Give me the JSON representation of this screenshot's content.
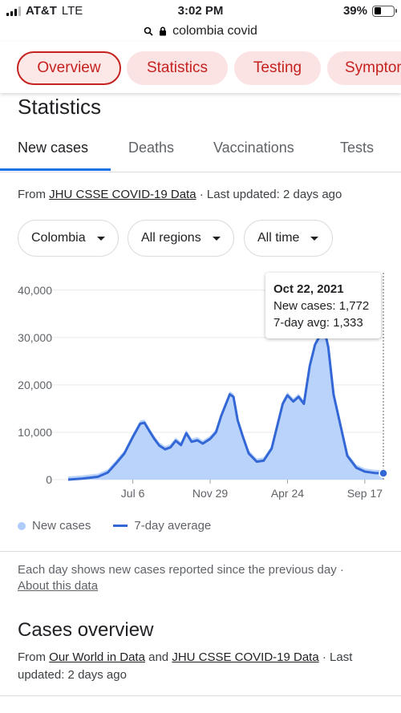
{
  "status_bar": {
    "carrier": "AT&T",
    "network": "LTE",
    "time": "3:02 PM",
    "battery": "39%",
    "battery_level": 0.39
  },
  "url": "colombia covid",
  "nav_chips": [
    "Overview",
    "Statistics",
    "Testing",
    "Symptoms"
  ],
  "section_title": "Statistics",
  "tabs": [
    "New cases",
    "Deaths",
    "Vaccinations",
    "Tests"
  ],
  "source_line": {
    "prefix": "From ",
    "link": "JHU CSSE COVID-19 Data",
    "suffix": " · Last updated: 2 days ago"
  },
  "filters": [
    "Colombia",
    "All regions",
    "All time"
  ],
  "tooltip": {
    "date": "Oct 22, 2021",
    "new_cases": "New cases: 1,772",
    "avg": "7-day avg: 1,333"
  },
  "legend": {
    "bars": "New cases",
    "line": "7-day average"
  },
  "note": {
    "text": "Each day shows new cases reported since the previous day",
    "sep": " · ",
    "link": "About this data"
  },
  "overview": {
    "title": "Cases overview",
    "prefix": "From ",
    "link1": "Our World in Data",
    "mid": " and ",
    "link2": "JHU CSSE COVID-19 Data",
    "suffix": " · Last updated: 2 days ago"
  },
  "colors": {
    "accent_red": "#c5221f",
    "chip_bg": "#fbe3e4",
    "tab_blue": "#1a73e8",
    "line_blue": "#3367d6",
    "bar_blue": "#aecbfa"
  },
  "chart_data": {
    "type": "area",
    "title": "",
    "y_ticks": [
      "0",
      "10,000",
      "20,000",
      "30,000",
      "40,000"
    ],
    "x_ticks": [
      "Jul 6",
      "Nov 29",
      "Apr 24",
      "Sep 17"
    ],
    "ylim": [
      0,
      42000
    ],
    "grid": true,
    "series": [
      {
        "name": "7-day average",
        "x": [
          "2020-03-06",
          "2020-04-01",
          "2020-05-01",
          "2020-05-20",
          "2020-06-05",
          "2020-06-20",
          "2020-07-06",
          "2020-07-20",
          "2020-07-28",
          "2020-08-05",
          "2020-08-15",
          "2020-08-25",
          "2020-09-05",
          "2020-09-15",
          "2020-09-25",
          "2020-10-05",
          "2020-10-15",
          "2020-10-25",
          "2020-11-05",
          "2020-11-15",
          "2020-11-29",
          "2020-12-10",
          "2020-12-20",
          "2021-01-05",
          "2021-01-12",
          "2021-01-20",
          "2021-01-30",
          "2021-02-10",
          "2021-02-25",
          "2021-03-10",
          "2021-03-25",
          "2021-04-05",
          "2021-04-15",
          "2021-04-24",
          "2021-05-05",
          "2021-05-15",
          "2021-05-25",
          "2021-06-05",
          "2021-06-15",
          "2021-06-25",
          "2021-07-02",
          "2021-07-10",
          "2021-07-20",
          "2021-08-01",
          "2021-08-15",
          "2021-09-01",
          "2021-09-17",
          "2021-10-05",
          "2021-10-22"
        ],
        "values": [
          0,
          200,
          600,
          1500,
          3500,
          5500,
          9000,
          11800,
          12000,
          10500,
          8700,
          7200,
          6400,
          6800,
          8200,
          7300,
          9800,
          8000,
          8300,
          7600,
          8600,
          10000,
          13500,
          18000,
          17500,
          12500,
          9000,
          5500,
          3800,
          4000,
          6500,
          11500,
          16000,
          17800,
          16500,
          17500,
          16000,
          24000,
          28500,
          30500,
          32000,
          28000,
          18000,
          12000,
          5000,
          2500,
          1700,
          1400,
          1333
        ]
      }
    ]
  }
}
